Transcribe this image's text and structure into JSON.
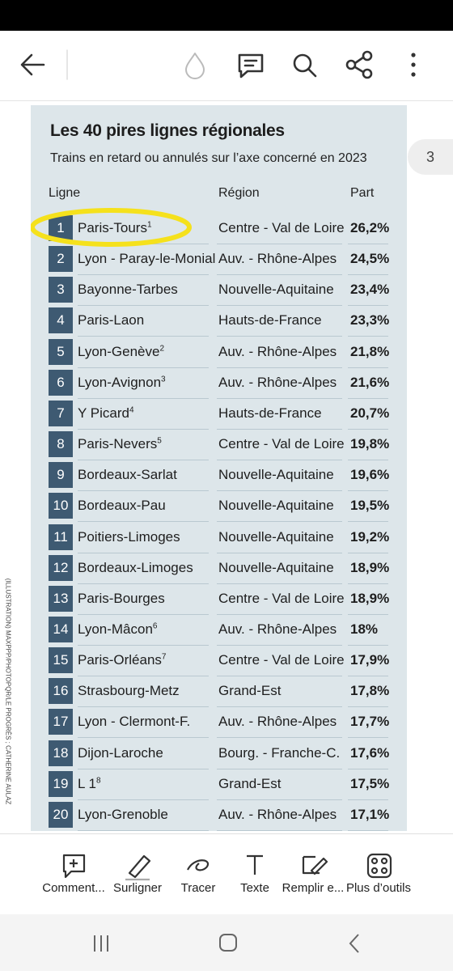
{
  "page_number": "3",
  "credit": "(ILLUSTRATION) MAXPPP/PHOTOPQR/LE PROGRÈS ; CATHERINE AULAZ",
  "table": {
    "title": "Les 40 pires lignes régionales",
    "subtitle": "Trains en retard ou annulés sur l’axe concerné en 2023",
    "headers": [
      "Ligne",
      "Région",
      "Part"
    ],
    "rows": [
      {
        "rank": "1",
        "line": "Paris-Tours",
        "note": "1",
        "region": "Centre - Val de Loire",
        "share": "26,2%"
      },
      {
        "rank": "2",
        "line": "Lyon - Paray-le-Monial",
        "region": "Auv. - Rhône-Alpes",
        "share": "24,5%"
      },
      {
        "rank": "3",
        "line": "Bayonne-Tarbes",
        "region": "Nouvelle-Aquitaine",
        "share": "23,4%"
      },
      {
        "rank": "4",
        "line": "Paris-Laon",
        "region": "Hauts-de-France",
        "share": "23,3%"
      },
      {
        "rank": "5",
        "line": "Lyon-Genève",
        "note": "2",
        "region": "Auv. - Rhône-Alpes",
        "share": "21,8%"
      },
      {
        "rank": "6",
        "line": "Lyon-Avignon",
        "note": "3",
        "region": "Auv. - Rhône-Alpes",
        "share": "21,6%"
      },
      {
        "rank": "7",
        "line": "Y Picard",
        "note": "4",
        "region": "Hauts-de-France",
        "share": "20,7%"
      },
      {
        "rank": "8",
        "line": "Paris-Nevers",
        "note": "5",
        "region": "Centre - Val de Loire",
        "share": "19,8%"
      },
      {
        "rank": "9",
        "line": "Bordeaux-Sarlat",
        "region": "Nouvelle-Aquitaine",
        "share": "19,6%"
      },
      {
        "rank": "10",
        "line": "Bordeaux-Pau",
        "region": "Nouvelle-Aquitaine",
        "share": "19,5%"
      },
      {
        "rank": "11",
        "line": "Poitiers-Limoges",
        "region": "Nouvelle-Aquitaine",
        "share": "19,2%"
      },
      {
        "rank": "12",
        "line": "Bordeaux-Limoges",
        "region": "Nouvelle-Aquitaine",
        "share": "18,9%"
      },
      {
        "rank": "13",
        "line": "Paris-Bourges",
        "region": "Centre - Val de Loire",
        "share": "18,9%"
      },
      {
        "rank": "14",
        "line": "Lyon-Mâcon",
        "note": "6",
        "region": "Auv. - Rhône-Alpes",
        "share": "18%"
      },
      {
        "rank": "15",
        "line": "Paris-Orléans",
        "note": "7",
        "region": "Centre - Val de Loire",
        "share": "17,9%"
      },
      {
        "rank": "16",
        "line": "Strasbourg-Metz",
        "region": "Grand-Est",
        "share": "17,8%"
      },
      {
        "rank": "17",
        "line": "Lyon - Clermont-F.",
        "region": "Auv. - Rhône-Alpes",
        "share": "17,7%"
      },
      {
        "rank": "18",
        "line": "Dijon-Laroche",
        "region": "Bourg. - Franche-C.",
        "share": "17,6%"
      },
      {
        "rank": "19",
        "line": "L 1",
        "note": "8",
        "region": "Grand-Est",
        "share": "17,5%"
      },
      {
        "rank": "20",
        "line": "Lyon-Grenoble",
        "region": "Auv. - Rhône-Alpes",
        "share": "17,1%"
      }
    ]
  },
  "tools": [
    "Comment...",
    "Surligner",
    "Tracer",
    "Texte",
    "Remplir e...",
    "Plus d’outils"
  ]
}
